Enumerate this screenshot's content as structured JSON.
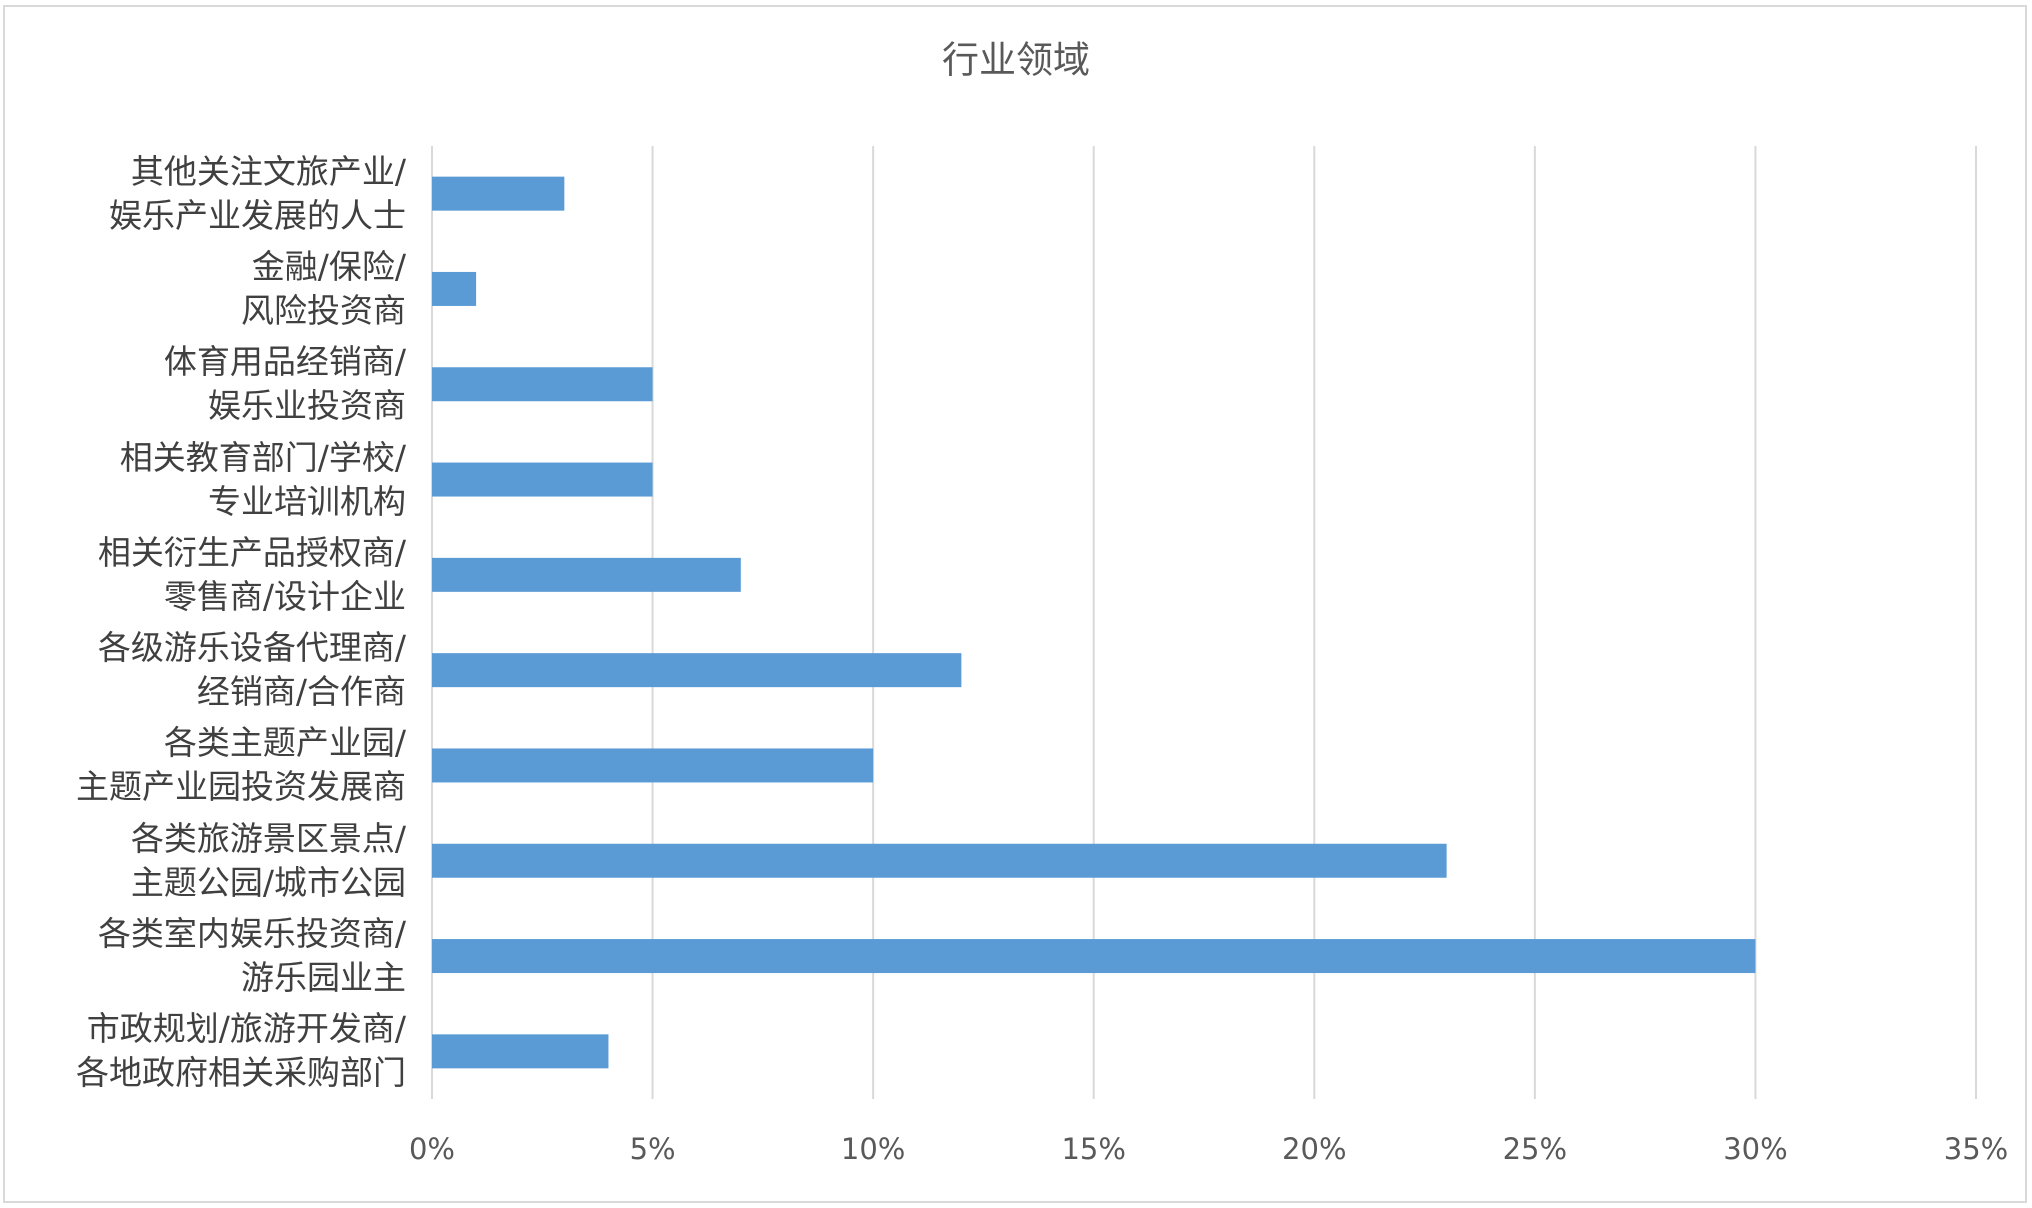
{
  "chart_data": {
    "type": "bar",
    "orientation": "horizontal",
    "title": "行业领域",
    "categories": [
      "其他关注文旅产业/\n娱乐产业发展的人士",
      "金融/保险/\n风险投资商",
      "体育用品经销商/\n娱乐业投资商",
      "相关教育部门/学校/\n专业培训机构",
      "相关衍生产品授权商/\n零售商/设计企业",
      "各级游乐设备代理商/\n经销商/合作商",
      "各类主题产业园/\n主题产业园投资发展商",
      "各类旅游景区景点/\n主题公园/城市公园",
      "各类室内娱乐投资商/\n游乐园业主",
      "市政规划/旅游开发商/\n各地政府相关采购部门"
    ],
    "values": [
      3,
      1,
      5,
      5,
      7,
      12,
      10,
      23,
      30,
      4
    ],
    "color": "#5b9bd5",
    "xlim": [
      0,
      35
    ],
    "xticks": [
      {
        "value": 0,
        "label": "0%"
      },
      {
        "value": 5,
        "label": "5%"
      },
      {
        "value": 10,
        "label": "10%"
      },
      {
        "value": 15,
        "label": "15%"
      },
      {
        "value": 20,
        "label": "20%"
      },
      {
        "value": 25,
        "label": "25%"
      },
      {
        "value": 30,
        "label": "30%"
      },
      {
        "value": 35,
        "label": "35%"
      }
    ],
    "grid": true
  }
}
